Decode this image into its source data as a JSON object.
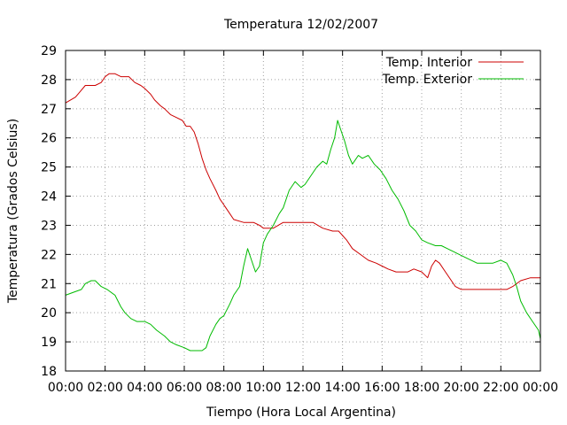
{
  "chart_data": {
    "type": "line",
    "title": "Temperatura 12/02/2007",
    "xlabel": "Tiempo (Hora Local Argentina)",
    "ylabel": "Temperatura (Grados Celsius)",
    "xlim": [
      0,
      24
    ],
    "ylim": [
      18,
      29
    ],
    "grid": true,
    "legend_position": "top-right",
    "x_ticks": [
      {
        "value": 0,
        "label": "00:00"
      },
      {
        "value": 2,
        "label": "02:00"
      },
      {
        "value": 4,
        "label": "04:00"
      },
      {
        "value": 6,
        "label": "06:00"
      },
      {
        "value": 8,
        "label": "08:00"
      },
      {
        "value": 10,
        "label": "10:00"
      },
      {
        "value": 12,
        "label": "12:00"
      },
      {
        "value": 14,
        "label": "14:00"
      },
      {
        "value": 16,
        "label": "16:00"
      },
      {
        "value": 18,
        "label": "18:00"
      },
      {
        "value": 20,
        "label": "20:00"
      },
      {
        "value": 22,
        "label": "22:00"
      },
      {
        "value": 24,
        "label": "00:00"
      }
    ],
    "y_ticks": [
      {
        "value": 18,
        "label": "18"
      },
      {
        "value": 19,
        "label": "19"
      },
      {
        "value": 20,
        "label": "20"
      },
      {
        "value": 21,
        "label": "21"
      },
      {
        "value": 22,
        "label": "22"
      },
      {
        "value": 23,
        "label": "23"
      },
      {
        "value": 24,
        "label": "24"
      },
      {
        "value": 25,
        "label": "25"
      },
      {
        "value": 26,
        "label": "26"
      },
      {
        "value": 27,
        "label": "27"
      },
      {
        "value": 28,
        "label": "28"
      },
      {
        "value": 29,
        "label": "29"
      }
    ],
    "series": [
      {
        "name": "Temp. Interior",
        "color": "#cc0000",
        "x": [
          0,
          0.25,
          0.5,
          0.75,
          1.0,
          1.5,
          1.8,
          2.0,
          2.2,
          2.5,
          2.8,
          3.2,
          3.5,
          3.8,
          4.0,
          4.3,
          4.5,
          4.8,
          5.0,
          5.3,
          5.6,
          5.9,
          6.1,
          6.3,
          6.5,
          6.7,
          6.9,
          7.1,
          7.3,
          7.6,
          7.8,
          8.0,
          8.3,
          8.5,
          9.0,
          9.5,
          9.8,
          10.0,
          10.5,
          11.0,
          11.5,
          12.0,
          12.5,
          13.0,
          13.5,
          13.8,
          14.2,
          14.5,
          14.9,
          15.3,
          15.7,
          16.0,
          16.3,
          16.7,
          17.0,
          17.3,
          17.6,
          18.0,
          18.3,
          18.5,
          18.7,
          18.9,
          19.2,
          19.5,
          19.7,
          20.0,
          20.4,
          20.8,
          21.3,
          21.8,
          22.3,
          22.6,
          23.0,
          23.5,
          24.0
        ],
        "y": [
          27.2,
          27.3,
          27.4,
          27.6,
          27.8,
          27.8,
          27.9,
          28.1,
          28.2,
          28.2,
          28.1,
          28.1,
          27.9,
          27.8,
          27.7,
          27.5,
          27.3,
          27.1,
          27.0,
          26.8,
          26.7,
          26.6,
          26.4,
          26.4,
          26.2,
          25.8,
          25.3,
          24.9,
          24.6,
          24.2,
          23.9,
          23.7,
          23.4,
          23.2,
          23.1,
          23.1,
          23.0,
          22.9,
          22.9,
          23.1,
          23.1,
          23.1,
          23.1,
          22.9,
          22.8,
          22.8,
          22.5,
          22.2,
          22.0,
          21.8,
          21.7,
          21.6,
          21.5,
          21.4,
          21.4,
          21.4,
          21.5,
          21.4,
          21.2,
          21.6,
          21.8,
          21.7,
          21.4,
          21.1,
          20.9,
          20.8,
          20.8,
          20.8,
          20.8,
          20.8,
          20.8,
          20.9,
          21.1,
          21.2,
          21.2
        ]
      },
      {
        "name": "Temp. Exterior",
        "color": "#00bb00",
        "x": [
          0,
          0.4,
          0.8,
          1.0,
          1.3,
          1.5,
          1.8,
          2.1,
          2.5,
          2.8,
          3.0,
          3.3,
          3.6,
          4.0,
          4.3,
          4.6,
          5.0,
          5.3,
          5.6,
          6.0,
          6.3,
          6.6,
          6.9,
          7.1,
          7.3,
          7.6,
          7.8,
          8.0,
          8.3,
          8.5,
          8.8,
          9.0,
          9.2,
          9.4,
          9.6,
          9.8,
          10.0,
          10.2,
          10.5,
          10.8,
          11.0,
          11.3,
          11.6,
          11.9,
          12.1,
          12.4,
          12.7,
          13.0,
          13.2,
          13.4,
          13.6,
          13.75,
          13.9,
          14.1,
          14.3,
          14.5,
          14.8,
          15.0,
          15.3,
          15.6,
          15.9,
          16.2,
          16.5,
          16.8,
          17.1,
          17.4,
          17.7,
          18.0,
          18.3,
          18.7,
          19.0,
          19.3,
          19.6,
          19.9,
          20.2,
          20.5,
          20.8,
          21.2,
          21.6,
          22.0,
          22.3,
          22.6,
          22.8,
          23.0,
          23.3,
          23.6,
          23.9,
          24.0
        ],
        "y": [
          20.6,
          20.7,
          20.8,
          21.0,
          21.1,
          21.1,
          20.9,
          20.8,
          20.6,
          20.2,
          20.0,
          19.8,
          19.7,
          19.7,
          19.6,
          19.4,
          19.2,
          19.0,
          18.9,
          18.8,
          18.7,
          18.7,
          18.7,
          18.8,
          19.2,
          19.6,
          19.8,
          19.9,
          20.3,
          20.6,
          20.9,
          21.6,
          22.2,
          21.8,
          21.4,
          21.6,
          22.4,
          22.7,
          23.0,
          23.4,
          23.6,
          24.2,
          24.5,
          24.3,
          24.4,
          24.7,
          25.0,
          25.2,
          25.1,
          25.6,
          26.0,
          26.6,
          26.3,
          25.9,
          25.4,
          25.1,
          25.4,
          25.3,
          25.4,
          25.1,
          24.9,
          24.6,
          24.2,
          23.9,
          23.5,
          23.0,
          22.8,
          22.5,
          22.4,
          22.3,
          22.3,
          22.2,
          22.1,
          22.0,
          21.9,
          21.8,
          21.7,
          21.7,
          21.7,
          21.8,
          21.7,
          21.3,
          20.9,
          20.4,
          20.0,
          19.7,
          19.4,
          19.1
        ]
      }
    ]
  }
}
